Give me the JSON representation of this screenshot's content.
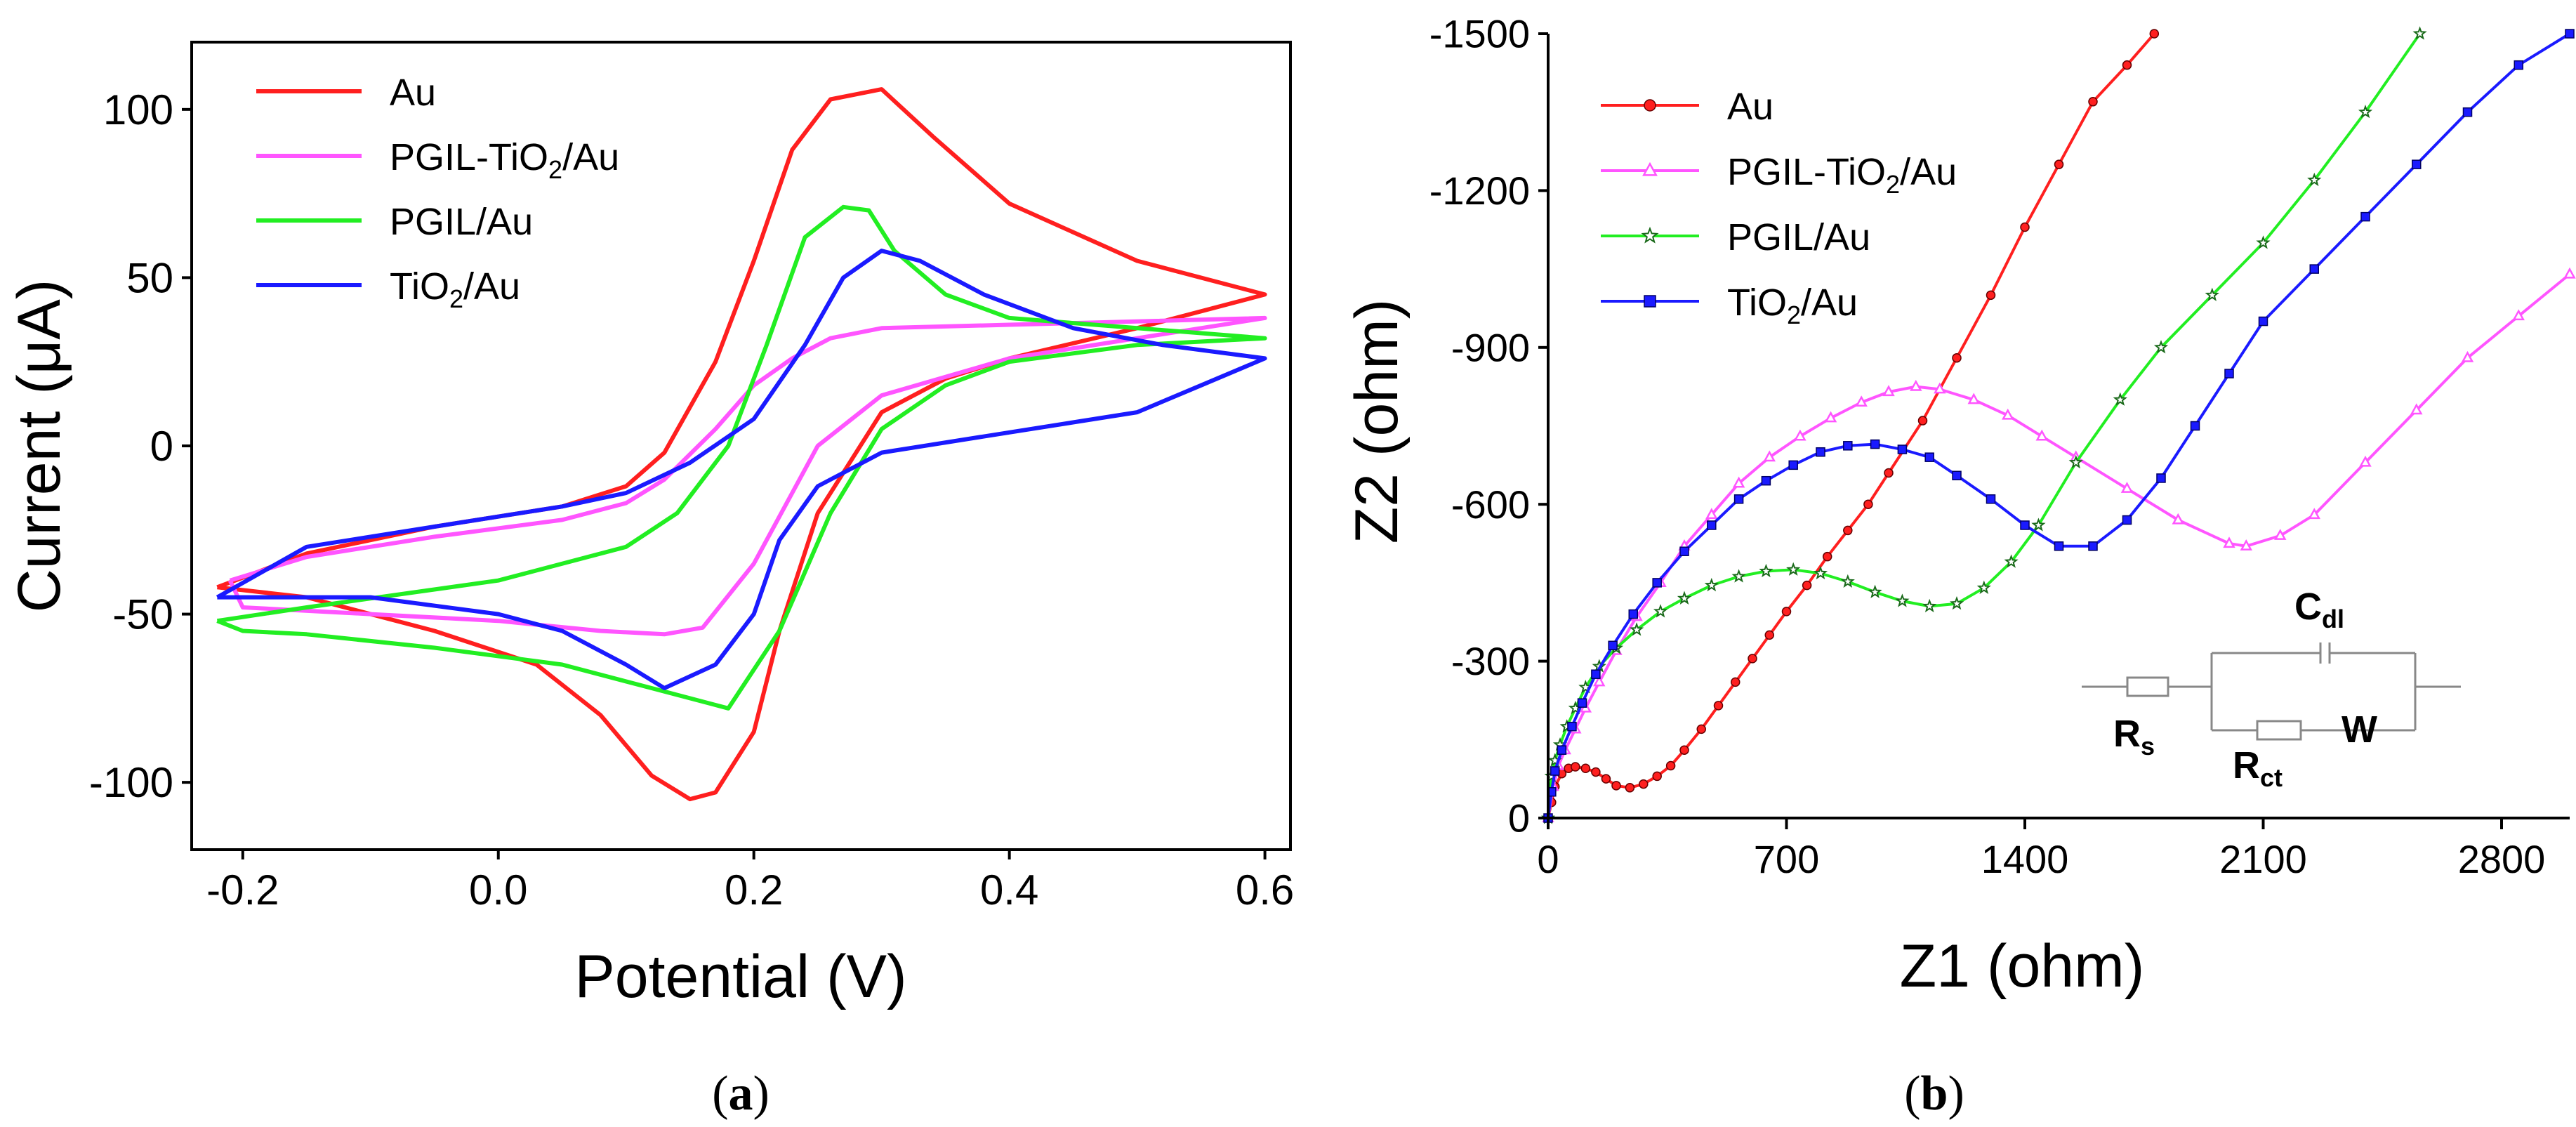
{
  "colors": {
    "au": "#ff1f1f",
    "pgil_tio2": "#ff55ff",
    "pgil": "#22ee22",
    "tio2": "#1a1aff",
    "axis": "#000000",
    "circuit": "#888888"
  },
  "chart_data": [
    {
      "id": "a",
      "type": "line",
      "panel_label": {
        "open": "(",
        "letter": "a",
        "close": ")"
      },
      "xlabel": "Potential (V)",
      "ylabel": "Current (μA)",
      "xlim": [
        -0.24,
        0.62
      ],
      "ylim": [
        -120,
        120
      ],
      "xticks": [
        -0.2,
        0.0,
        0.2,
        0.4,
        0.6
      ],
      "xtick_labels": [
        "-0.2",
        "0.0",
        "0.2",
        "0.4",
        "0.6"
      ],
      "yticks": [
        -100,
        -50,
        0,
        50,
        100
      ],
      "ytick_labels": [
        "-100",
        "-50",
        "0",
        "50",
        "100"
      ],
      "legend_position": "top-left",
      "series": [
        {
          "name": "Au",
          "name_parts": [
            "Au"
          ],
          "color_key": "au",
          "x": [
            -0.22,
            -0.15,
            -0.05,
            0.05,
            0.1,
            0.13,
            0.17,
            0.2,
            0.23,
            0.26,
            0.3,
            0.34,
            0.4,
            0.5,
            0.6,
            0.5,
            0.4,
            0.35,
            0.3,
            0.25,
            0.22,
            0.2,
            0.17,
            0.15,
            0.12,
            0.08,
            0.03,
            -0.05,
            -0.15,
            -0.22
          ],
          "y": [
            -42,
            -32,
            -24,
            -18,
            -12,
            -2,
            25,
            55,
            88,
            103,
            106,
            92,
            72,
            55,
            45,
            35,
            26,
            20,
            10,
            -20,
            -55,
            -85,
            -103,
            -105,
            -98,
            -80,
            -65,
            -55,
            -45,
            -42
          ]
        },
        {
          "name": "PGIL-TiO2/Au",
          "name_parts": [
            "PGIL-TiO",
            "2",
            "/Au"
          ],
          "color_key": "pgil_tio2",
          "x": [
            -0.21,
            -0.15,
            -0.05,
            0.05,
            0.1,
            0.13,
            0.17,
            0.2,
            0.23,
            0.26,
            0.3,
            0.4,
            0.5,
            0.6,
            0.5,
            0.4,
            0.3,
            0.25,
            0.2,
            0.16,
            0.13,
            0.08,
            0.0,
            -0.1,
            -0.2,
            -0.21
          ],
          "y": [
            -40,
            -33,
            -27,
            -22,
            -17,
            -10,
            5,
            18,
            26,
            32,
            35,
            36,
            37,
            38,
            32,
            26,
            15,
            0,
            -35,
            -54,
            -56,
            -55,
            -52,
            -50,
            -48,
            -40
          ]
        },
        {
          "name": "PGIL/Au",
          "name_parts": [
            "PGIL/Au"
          ],
          "color_key": "pgil",
          "x": [
            -0.22,
            -0.15,
            0.0,
            0.1,
            0.14,
            0.18,
            0.21,
            0.24,
            0.27,
            0.29,
            0.31,
            0.35,
            0.4,
            0.5,
            0.6,
            0.5,
            0.4,
            0.35,
            0.3,
            0.26,
            0.22,
            0.18,
            0.12,
            0.05,
            -0.05,
            -0.15,
            -0.2,
            -0.22
          ],
          "y": [
            -52,
            -48,
            -40,
            -30,
            -20,
            0,
            30,
            62,
            71,
            70,
            58,
            45,
            38,
            35,
            32,
            30,
            25,
            18,
            5,
            -20,
            -55,
            -78,
            -72,
            -65,
            -60,
            -56,
            -55,
            -52
          ]
        },
        {
          "name": "TiO2/Au",
          "name_parts": [
            "TiO",
            "2",
            "/Au"
          ],
          "color_key": "tio2",
          "x": [
            -0.22,
            -0.15,
            -0.05,
            0.05,
            0.1,
            0.15,
            0.2,
            0.24,
            0.27,
            0.3,
            0.33,
            0.38,
            0.45,
            0.52,
            0.6,
            0.55,
            0.5,
            0.4,
            0.3,
            0.25,
            0.22,
            0.2,
            0.17,
            0.13,
            0.1,
            0.05,
            0.0,
            -0.1,
            -0.22
          ],
          "y": [
            -45,
            -30,
            -24,
            -18,
            -14,
            -5,
            8,
            30,
            50,
            58,
            55,
            45,
            35,
            30,
            26,
            18,
            10,
            4,
            -2,
            -12,
            -28,
            -50,
            -65,
            -72,
            -65,
            -55,
            -50,
            -45,
            -45
          ]
        }
      ]
    },
    {
      "id": "b",
      "type": "line",
      "panel_label": {
        "open": "(",
        "letter": "b",
        "close": ")"
      },
      "xlabel": "Z1 (ohm)",
      "ylabel": "Z2 (ohm)",
      "xlim": [
        0,
        3000
      ],
      "ylim": [
        0,
        -1500
      ],
      "xticks": [
        0,
        700,
        1400,
        2100,
        2800
      ],
      "xtick_labels": [
        "0",
        "700",
        "1400",
        "2100",
        "2800"
      ],
      "yticks": [
        0,
        -300,
        -600,
        -900,
        -1200,
        -1500
      ],
      "ytick_labels": [
        "0",
        "-300",
        "-600",
        "-900",
        "-1200",
        "-1500"
      ],
      "legend_position": "top-left",
      "series": [
        {
          "name": "Au",
          "name_parts": [
            "Au"
          ],
          "marker": "circle",
          "color_key": "au",
          "x": [
            0,
            10,
            20,
            40,
            60,
            80,
            110,
            140,
            170,
            200,
            240,
            280,
            320,
            360,
            400,
            450,
            500,
            550,
            600,
            650,
            700,
            760,
            820,
            880,
            940,
            1000,
            1100,
            1200,
            1300,
            1400,
            1500,
            1600,
            1700,
            1780
          ],
          "y": [
            0,
            -30,
            -60,
            -85,
            -95,
            -98,
            -95,
            -88,
            -75,
            -62,
            -58,
            -65,
            -80,
            -100,
            -130,
            -170,
            -215,
            -260,
            -305,
            -350,
            -395,
            -445,
            -500,
            -550,
            -600,
            -660,
            -760,
            -880,
            -1000,
            -1130,
            -1250,
            -1370,
            -1440,
            -1500
          ]
        },
        {
          "name": "PGIL-TiO2/Au",
          "name_parts": [
            "PGIL-TiO",
            "2",
            "/Au"
          ],
          "marker": "triangle",
          "color_key": "pgil_tio2",
          "x": [
            0,
            15,
            30,
            50,
            80,
            110,
            150,
            200,
            260,
            330,
            400,
            480,
            560,
            650,
            740,
            830,
            920,
            1000,
            1080,
            1150,
            1250,
            1350,
            1450,
            1550,
            1700,
            1850,
            2000,
            2050,
            2150,
            2250,
            2400,
            2550,
            2700,
            2850,
            3000
          ],
          "y": [
            0,
            -60,
            -100,
            -130,
            -170,
            -210,
            -260,
            -320,
            -385,
            -450,
            -520,
            -580,
            -640,
            -690,
            -730,
            -765,
            -795,
            -815,
            -825,
            -820,
            -800,
            -770,
            -730,
            -690,
            -630,
            -570,
            -525,
            -520,
            -540,
            -580,
            -680,
            -780,
            -880,
            -960,
            -1040
          ]
        },
        {
          "name": "PGIL/Au",
          "name_parts": [
            "PGIL/Au"
          ],
          "marker": "star",
          "color_key": "pgil",
          "x": [
            0,
            10,
            20,
            35,
            55,
            80,
            110,
            150,
            200,
            260,
            330,
            400,
            480,
            560,
            640,
            720,
            800,
            880,
            960,
            1040,
            1120,
            1200,
            1280,
            1360,
            1440,
            1550,
            1680,
            1800,
            1950,
            2100,
            2250,
            2400,
            2560
          ],
          "y": [
            0,
            -80,
            -110,
            -140,
            -175,
            -210,
            -250,
            -290,
            -325,
            -360,
            -395,
            -420,
            -445,
            -462,
            -472,
            -475,
            -468,
            -452,
            -432,
            -415,
            -405,
            -410,
            -440,
            -490,
            -560,
            -680,
            -800,
            -900,
            -1000,
            -1100,
            -1220,
            -1350,
            -1500
          ]
        },
        {
          "name": "TiO2/Au",
          "name_parts": [
            "TiO",
            "2",
            "/Au"
          ],
          "marker": "square",
          "color_key": "tio2",
          "x": [
            0,
            10,
            20,
            40,
            70,
            100,
            140,
            190,
            250,
            320,
            400,
            480,
            560,
            640,
            720,
            800,
            880,
            960,
            1040,
            1120,
            1200,
            1300,
            1400,
            1500,
            1600,
            1700,
            1800,
            1900,
            2000,
            2100,
            2250,
            2400,
            2550,
            2700,
            2850,
            3000
          ],
          "y": [
            0,
            -50,
            -90,
            -130,
            -175,
            -220,
            -275,
            -330,
            -390,
            -450,
            -510,
            -560,
            -610,
            -645,
            -675,
            -700,
            -712,
            -715,
            -705,
            -690,
            -655,
            -610,
            -560,
            -520,
            -520,
            -570,
            -650,
            -750,
            -850,
            -950,
            -1050,
            -1150,
            -1250,
            -1350,
            -1440,
            -1500
          ]
        }
      ],
      "inset_circuit": {
        "labels": [
          {
            "main": "R",
            "sub": "s"
          },
          {
            "main": "C",
            "sub": "dl"
          },
          {
            "main": "R",
            "sub": "ct"
          },
          {
            "main": "W",
            "sub": ""
          }
        ]
      }
    }
  ]
}
